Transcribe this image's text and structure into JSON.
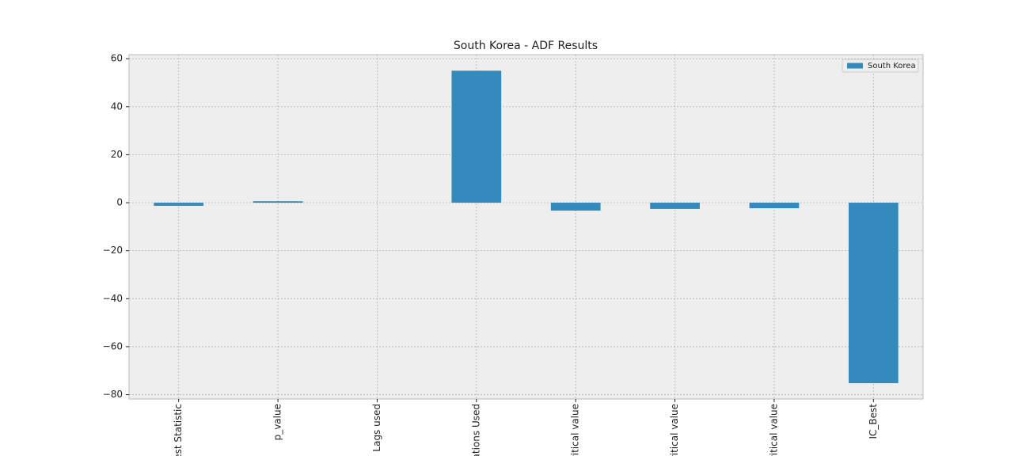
{
  "chart_data": {
    "type": "bar",
    "title": "South Korea - ADF Results",
    "categories": [
      "est Statistic",
      "p_value",
      "Lags used",
      "ations Used",
      "ritical value",
      "ritical value",
      "ritical value",
      "IC_Best"
    ],
    "series": [
      {
        "name": "South Korea",
        "color": "#348abd",
        "values": [
          -1.3,
          0.6,
          0,
          55,
          -3.3,
          -2.6,
          -2.3,
          -75.2
        ]
      }
    ],
    "ylim": [
      -81.8,
      61.7
    ],
    "yticks": [
      {
        "value": -80,
        "label": "−80"
      },
      {
        "value": -60,
        "label": "−60"
      },
      {
        "value": -40,
        "label": "−40"
      },
      {
        "value": -20,
        "label": "−20"
      },
      0,
      20,
      40,
      60
    ],
    "grid": true,
    "legend": "upper right"
  }
}
